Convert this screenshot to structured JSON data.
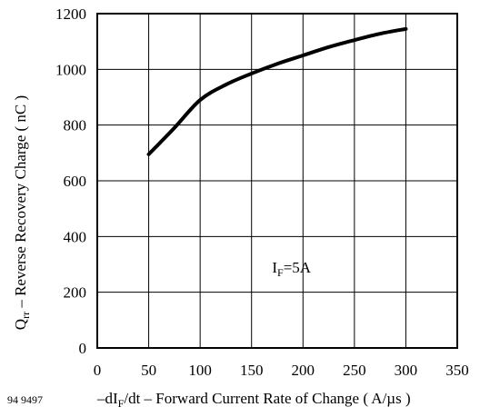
{
  "chart_data": {
    "type": "line",
    "xlim": [
      0,
      350
    ],
    "ylim": [
      0,
      1200
    ],
    "x_ticks": [
      "0",
      "50",
      "100",
      "150",
      "200",
      "250",
      "300",
      "350"
    ],
    "y_ticks": [
      "0",
      "200",
      "400",
      "600",
      "800",
      "1000",
      "1200"
    ],
    "grid": true,
    "series": [
      {
        "x": [
          50,
          75,
          100,
          125,
          150,
          175,
          200,
          225,
          250,
          275,
          300
        ],
        "y": [
          695,
          790,
          890,
          945,
          985,
          1020,
          1050,
          1080,
          1105,
          1128,
          1145
        ]
      }
    ],
    "annotation": {
      "main": "I",
      "sub": "F",
      "rest": "=5A",
      "x": 170,
      "y": 270
    },
    "ylabel": {
      "main": "Q",
      "sub": "rr",
      "rest": " – Reverse Recovery Charge ( nC )"
    },
    "xlabel": {
      "pre": "–dI",
      "sub": "F",
      "rest": "/dt – Forward Current Rate of Change ( A/µs )"
    },
    "figure_number": "94 9497"
  }
}
